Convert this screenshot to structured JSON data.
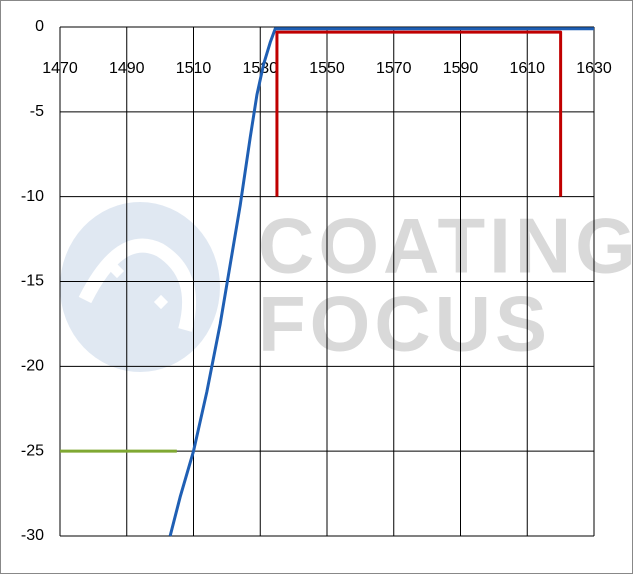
{
  "chart_data": {
    "type": "line",
    "xlim": [
      1470,
      1630
    ],
    "ylim": [
      -30,
      0
    ],
    "xticks": [
      1470,
      1490,
      1510,
      1530,
      1550,
      1570,
      1590,
      1610,
      1630
    ],
    "yticks": [
      0,
      -5,
      -10,
      -15,
      -20,
      -25,
      -30
    ],
    "grid": true,
    "annotations": [
      "COATING",
      "FOCUS"
    ],
    "series": [
      {
        "color": "#1f5fb4",
        "x": [
          1503,
          1506,
          1510,
          1514,
          1518,
          1521,
          1524,
          1527,
          1529,
          1531,
          1533,
          1534.5,
          1540,
          1630
        ],
        "values": [
          -30,
          -27.7,
          -25,
          -21.5,
          -17.5,
          -14,
          -10.5,
          -6.5,
          -4,
          -2.2,
          -0.9,
          -0.1,
          -0.1,
          -0.1
        ]
      },
      {
        "color": "#c00000",
        "x": [
          1535,
          1535,
          1620,
          1620
        ],
        "values": [
          -10,
          -0.3,
          -0.3,
          -10
        ]
      },
      {
        "color": "#7fa832",
        "x": [
          1470,
          1505
        ],
        "values": [
          -25,
          -25
        ]
      }
    ]
  }
}
